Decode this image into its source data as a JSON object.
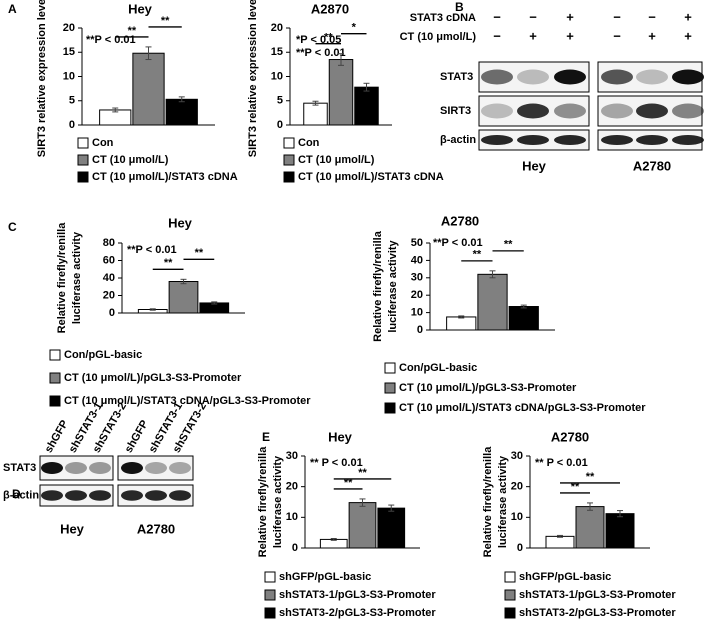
{
  "chart_data": [
    {
      "type": "bar",
      "panel": "A",
      "title": "Hey",
      "ylabel": [
        "SIRT3 relative expression level"
      ],
      "annotations": [
        "**P < 0.01"
      ],
      "ylim": [
        0,
        20
      ],
      "yticks": [
        0,
        5,
        10,
        15,
        20
      ],
      "series": [
        {
          "name": "Con",
          "color": "#ffffff",
          "values": [
            3.1
          ],
          "errors": [
            0.4
          ]
        },
        {
          "name": "CT (10 μmol/L)",
          "color": "#808080",
          "values": [
            14.8
          ],
          "errors": [
            1.3
          ]
        },
        {
          "name": "CT (10 μmol/L)/STAT3 cDNA",
          "color": "#000000",
          "values": [
            5.3
          ],
          "errors": [
            0.5
          ]
        }
      ],
      "significance": [
        {
          "pair": [
            0,
            1
          ],
          "label": "**"
        },
        {
          "pair": [
            1,
            2
          ],
          "label": "**"
        }
      ]
    },
    {
      "type": "bar",
      "title": "A2870",
      "ylabel": [
        "SIRT3 relative expression level"
      ],
      "annotations": [
        "*P < 0.05",
        "**P < 0.01"
      ],
      "ylim": [
        0,
        20
      ],
      "yticks": [
        0,
        5,
        10,
        15,
        20
      ],
      "series": [
        {
          "name": "Con",
          "color": "#ffffff",
          "values": [
            4.5
          ],
          "errors": [
            0.4
          ]
        },
        {
          "name": "CT (10 μmol/L)",
          "color": "#808080",
          "values": [
            13.5
          ],
          "errors": [
            1.2
          ]
        },
        {
          "name": "CT (10 μmol/L)/STAT3 cDNA",
          "color": "#000000",
          "values": [
            7.8
          ],
          "errors": [
            0.8
          ]
        }
      ],
      "significance": [
        {
          "pair": [
            0,
            1
          ],
          "label": "**"
        },
        {
          "pair": [
            1,
            2
          ],
          "label": "*"
        }
      ]
    },
    {
      "type": "bar",
      "panel": "C",
      "title": "Hey",
      "ylabel": [
        "Relative firefly/renilla",
        "luciferase activity"
      ],
      "annotations": [
        "**P < 0.01"
      ],
      "ylim": [
        0,
        80
      ],
      "yticks": [
        0,
        20,
        40,
        60,
        80
      ],
      "series": [
        {
          "name": "Con/pGL-basic",
          "color": "#ffffff",
          "values": [
            4
          ],
          "errors": [
            0.8
          ]
        },
        {
          "name": "CT (10 μmol/L)/pGL3-S3-Promoter",
          "color": "#808080",
          "values": [
            36
          ],
          "errors": [
            2.5
          ]
        },
        {
          "name": "CT (10 μmol/L)/STAT3 cDNA/pGL3-S3-Promoter",
          "color": "#000000",
          "values": [
            11.5
          ],
          "errors": [
            1.2
          ]
        }
      ],
      "significance": [
        {
          "pair": [
            0,
            1
          ],
          "label": "**"
        },
        {
          "pair": [
            1,
            2
          ],
          "label": "**"
        }
      ]
    },
    {
      "type": "bar",
      "title": "A2780",
      "ylabel": [
        "Relative firefly/renilla",
        "luciferase activity"
      ],
      "annotations": [
        "**P < 0.01"
      ],
      "ylim": [
        0,
        50
      ],
      "yticks": [
        0,
        10,
        20,
        30,
        40,
        50
      ],
      "series": [
        {
          "name": "Con/pGL-basic",
          "color": "#ffffff",
          "values": [
            7.5
          ],
          "errors": [
            0.6
          ]
        },
        {
          "name": "CT (10 μmol/L)/pGL3-S3-Promoter",
          "color": "#808080",
          "values": [
            32
          ],
          "errors": [
            2
          ]
        },
        {
          "name": "CT (10 μmol/L)/STAT3 cDNA/pGL3-S3-Promoter",
          "color": "#000000",
          "values": [
            13.5
          ],
          "errors": [
            0.8
          ]
        }
      ],
      "significance": [
        {
          "pair": [
            0,
            1
          ],
          "label": "**"
        },
        {
          "pair": [
            1,
            2
          ],
          "label": "**"
        }
      ]
    },
    {
      "type": "bar",
      "panel": "E",
      "title": "Hey",
      "ylabel": [
        "Relative firefly/renilla",
        "luciferase activity"
      ],
      "annotations": [
        "** P < 0.01"
      ],
      "ylim": [
        0,
        30
      ],
      "yticks": [
        0,
        10,
        20,
        30
      ],
      "series": [
        {
          "name": "shGFP/pGL-basic",
          "color": "#ffffff",
          "values": [
            2.8
          ],
          "errors": [
            0.3
          ]
        },
        {
          "name": "shSTAT3-1/pGL3-S3-Promoter",
          "color": "#808080",
          "values": [
            14.8
          ],
          "errors": [
            1.2
          ]
        },
        {
          "name": "shSTAT3-2/pGL3-S3-Promoter",
          "color": "#000000",
          "values": [
            13
          ],
          "errors": [
            1
          ]
        }
      ],
      "significance": [
        {
          "pair": [
            0,
            1
          ],
          "label": "**"
        },
        {
          "pair": [
            0,
            2
          ],
          "label": "**"
        }
      ]
    },
    {
      "type": "bar",
      "title": "A2780",
      "ylabel": [
        "Relative firefly/renilla",
        "luciferase activity"
      ],
      "annotations": [
        "** P < 0.01"
      ],
      "ylim": [
        0,
        30
      ],
      "yticks": [
        0,
        10,
        20,
        30
      ],
      "series": [
        {
          "name": "shGFP/pGL-basic",
          "color": "#ffffff",
          "values": [
            3.8
          ],
          "errors": [
            0.3
          ]
        },
        {
          "name": "shSTAT3-1/pGL3-S3-Promoter",
          "color": "#808080",
          "values": [
            13.5
          ],
          "errors": [
            1.2
          ]
        },
        {
          "name": "shSTAT3-2/pGL3-S3-Promoter",
          "color": "#000000",
          "values": [
            11.2
          ],
          "errors": [
            1
          ]
        }
      ],
      "significance": [
        {
          "pair": [
            0,
            1
          ],
          "label": "**"
        },
        {
          "pair": [
            0,
            2
          ],
          "label": "**"
        }
      ]
    }
  ],
  "blots": [
    {
      "panel": "B",
      "rows": [
        "STAT3 cDNA",
        "CT (10 μmol/L)"
      ],
      "signs": [
        [
          "−",
          "−",
          "+",
          "−",
          "−",
          "+"
        ],
        [
          "−",
          "+",
          "+",
          "−",
          "+",
          "+"
        ]
      ],
      "bands": [
        "STAT3",
        "SIRT3",
        "β-actin"
      ],
      "groups": [
        "Hey",
        "A2780"
      ]
    },
    {
      "panel": "D",
      "lanes": [
        "shGFP",
        "shSTAT3-1",
        "shSTAT3-2",
        "shGFP",
        "shSTAT3-1",
        "shSTAT3-2"
      ],
      "bands": [
        "STAT3",
        "β-actin"
      ],
      "groups": [
        "Hey",
        "A2780"
      ]
    }
  ]
}
